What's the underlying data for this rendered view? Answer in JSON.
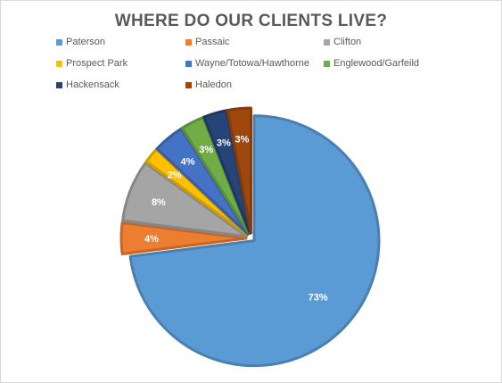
{
  "chart_data": {
    "type": "pie",
    "title": "WHERE DO OUR CLIENTS LIVE?",
    "categories": [
      "Paterson",
      "Passaic",
      "Clifton",
      "Prospect Park",
      "Wayne/Totowa/Hawthorne",
      "Englewood/Garfeild",
      "Hackensack",
      "Haledon"
    ],
    "values": [
      73,
      4,
      8,
      2,
      4,
      3,
      3,
      3
    ],
    "data_labels": [
      "73%",
      "4%",
      "8%",
      "2%",
      "4%",
      "3%",
      "3%",
      "3%"
    ],
    "colors": [
      "#5b9bd5",
      "#ed7d31",
      "#a5a5a5",
      "#ffc000",
      "#4472c4",
      "#70ad47",
      "#264478",
      "#9e480e"
    ],
    "legend_position": "top-left",
    "start_angle_deg": 0,
    "direction": "clockwise",
    "exploded": true
  }
}
